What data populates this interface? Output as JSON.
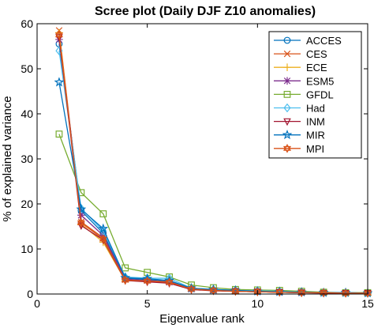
{
  "chart_data": {
    "type": "line",
    "title": "Scree plot (Daily DJF Z10 anomalies)",
    "xlabel": "Eigenvalue rank",
    "ylabel": "% of explained variance",
    "xlim": [
      0,
      15
    ],
    "ylim": [
      0,
      60
    ],
    "xticks": [
      0,
      5,
      10,
      15
    ],
    "yticks": [
      0,
      10,
      20,
      30,
      40,
      50,
      60
    ],
    "grid": false,
    "legend_position": "top-right",
    "x": [
      1,
      2,
      3,
      4,
      5,
      6,
      7,
      8,
      9,
      10,
      11,
      12,
      13,
      14,
      15
    ],
    "series": [
      {
        "name": "ACCES",
        "color": "#0072BD",
        "marker": "circle",
        "values": [
          55.5,
          18.5,
          13.5,
          3.5,
          3.2,
          2.8,
          1.2,
          0.9,
          0.7,
          0.6,
          0.5,
          0.4,
          0.3,
          0.3,
          0.2
        ]
      },
      {
        "name": "CES",
        "color": "#D95319",
        "marker": "cross",
        "values": [
          58.5,
          16.0,
          12.5,
          3.2,
          3.0,
          2.7,
          1.1,
          0.8,
          0.6,
          0.5,
          0.4,
          0.3,
          0.3,
          0.2,
          0.2
        ]
      },
      {
        "name": "ECE",
        "color": "#EDB120",
        "marker": "plus",
        "values": [
          58.0,
          15.5,
          11.5,
          3.0,
          2.8,
          2.5,
          1.0,
          0.8,
          0.6,
          0.5,
          0.4,
          0.3,
          0.3,
          0.2,
          0.2
        ]
      },
      {
        "name": "ESM5",
        "color": "#7E2F8E",
        "marker": "asterisk",
        "values": [
          56.5,
          17.5,
          13.0,
          3.3,
          3.0,
          2.6,
          1.1,
          0.8,
          0.6,
          0.5,
          0.4,
          0.3,
          0.3,
          0.2,
          0.2
        ]
      },
      {
        "name": "GFDL",
        "color": "#77AC30",
        "marker": "square",
        "values": [
          35.5,
          22.5,
          17.8,
          5.8,
          4.8,
          3.8,
          2.0,
          1.4,
          1.0,
          0.9,
          0.8,
          0.6,
          0.4,
          0.3,
          0.3
        ]
      },
      {
        "name": "Had",
        "color": "#4DBEEE",
        "marker": "diamond",
        "values": [
          54.0,
          19.0,
          14.0,
          3.8,
          3.5,
          3.5,
          1.3,
          1.0,
          0.8,
          0.7,
          0.6,
          0.4,
          0.3,
          0.3,
          0.2
        ]
      },
      {
        "name": "INM",
        "color": "#A2142F",
        "marker": "triangle-down",
        "values": [
          57.0,
          15.2,
          12.0,
          3.0,
          2.7,
          2.4,
          1.0,
          0.7,
          0.6,
          0.5,
          0.4,
          0.3,
          0.2,
          0.2,
          0.2
        ]
      },
      {
        "name": "MIR",
        "color": "#0072BD",
        "marker": "star",
        "values": [
          47.0,
          18.8,
          14.5,
          3.6,
          3.4,
          3.0,
          1.3,
          1.0,
          0.8,
          0.6,
          0.5,
          0.4,
          0.3,
          0.3,
          0.2
        ]
      },
      {
        "name": "MPI",
        "color": "#D95319",
        "marker": "hexagram",
        "values": [
          57.5,
          15.8,
          12.2,
          3.1,
          2.9,
          2.6,
          1.1,
          0.8,
          0.6,
          0.5,
          0.4,
          0.3,
          0.3,
          0.2,
          0.2
        ]
      }
    ]
  }
}
